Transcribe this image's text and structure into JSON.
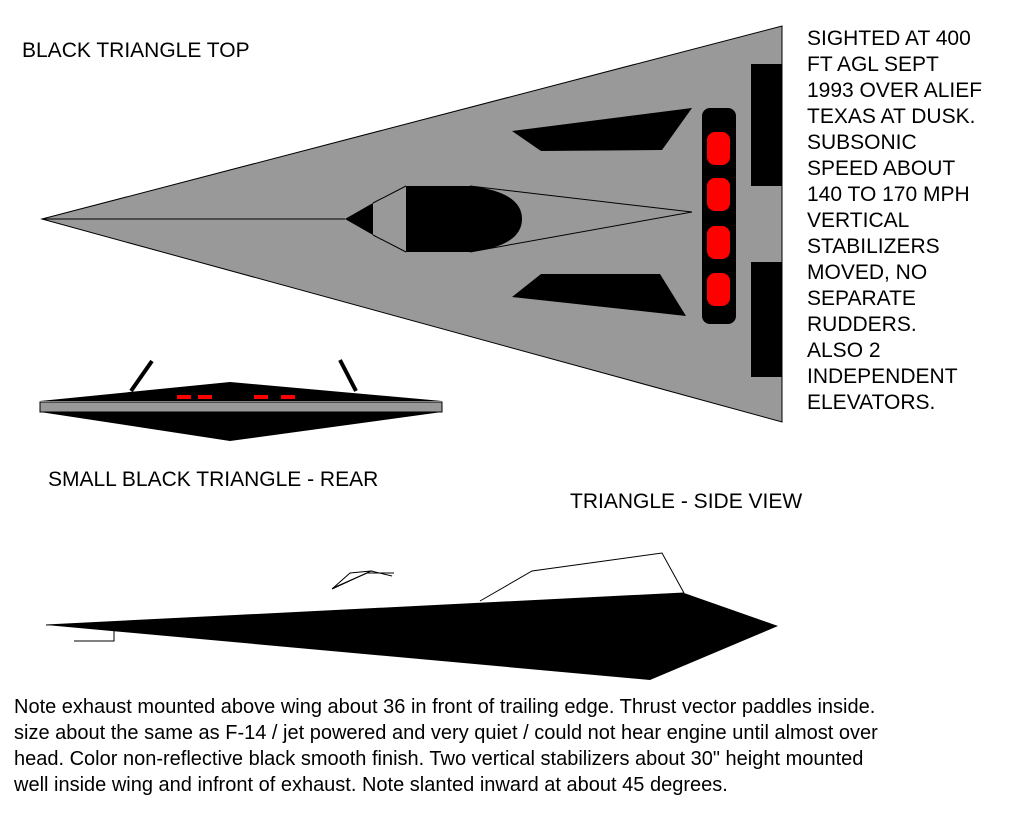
{
  "titles": {
    "top_view": "BLACK TRIANGLE TOP",
    "rear_view": "SMALL BLACK TRIANGLE - REAR",
    "side_view": "TRIANGLE - SIDE VIEW"
  },
  "sighting_lines": [
    "SIGHTED AT 400",
    "FT AGL SEPT",
    "1993 OVER ALIEF",
    "TEXAS AT DUSK.",
    "SUBSONIC",
    "SPEED ABOUT",
    "140 TO 170 MPH",
    "VERTICAL",
    "STABILIZERS",
    "MOVED, NO",
    "SEPARATE",
    "RUDDERS.",
    "ALSO 2",
    "INDEPENDENT",
    "ELEVATORS."
  ],
  "note_lines": [
    "Note exhaust mounted above wing about 36 in front of trailing edge. Thrust vector paddles inside.",
    "size about the same as F-14 / jet powered and very quiet / could not hear engine until almost over",
    "head. Color non-reflective black smooth finish. Two vertical stabilizers about 30\" height mounted",
    "well inside wing and infront of exhaust. Note slanted inward at about 45 degrees."
  ],
  "colors": {
    "body_gray": "#999999",
    "black": "#000000",
    "light_red": "#ff0000"
  }
}
